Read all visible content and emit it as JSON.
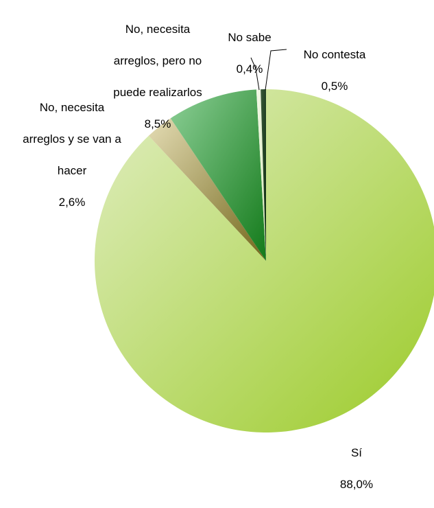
{
  "chart_data": {
    "type": "pie",
    "title": "",
    "slices": [
      {
        "label": "Sí",
        "value": 88.0,
        "value_label": "88,0%",
        "color_light": "#e1eec2",
        "color_dark": "#9ccb2a"
      },
      {
        "label": "No, necesita arreglos y se van a hacer",
        "value": 2.6,
        "value_label": "2,6%",
        "color_light": "#e4dcb4",
        "color_dark": "#73671b"
      },
      {
        "label": "No, necesita arreglos, pero no puede realizarlos",
        "value": 8.5,
        "value_label": "8,5%",
        "color_light": "#8ccf96",
        "color_dark": "#137a1a"
      },
      {
        "label": "No sabe",
        "value": 0.4,
        "value_label": "0,4%",
        "color_light": "#f3f8e8",
        "color_dark": "#d8e9b8"
      },
      {
        "label": "No contesta",
        "value": 0.5,
        "value_label": "0,5%",
        "color_light": "#3a5a3a",
        "color_dark": "#0c2a10"
      }
    ],
    "legend": "none"
  },
  "labels": {
    "si": {
      "line1": "Sí",
      "line2": "88,0%"
    },
    "arreglos_hacer": {
      "line1": "No, necesita",
      "line2": "arreglos y se van a",
      "line3": "hacer",
      "line4": "2,6%"
    },
    "arreglos_no": {
      "line1": "No, necesita",
      "line2": "arreglos, pero no",
      "line3": "puede realizarlos",
      "line4": "8,5%"
    },
    "no_sabe": {
      "line1": "No sabe",
      "line2": "0,4%"
    },
    "no_contesta": {
      "line1": "No contesta",
      "line2": "0,5%"
    }
  }
}
